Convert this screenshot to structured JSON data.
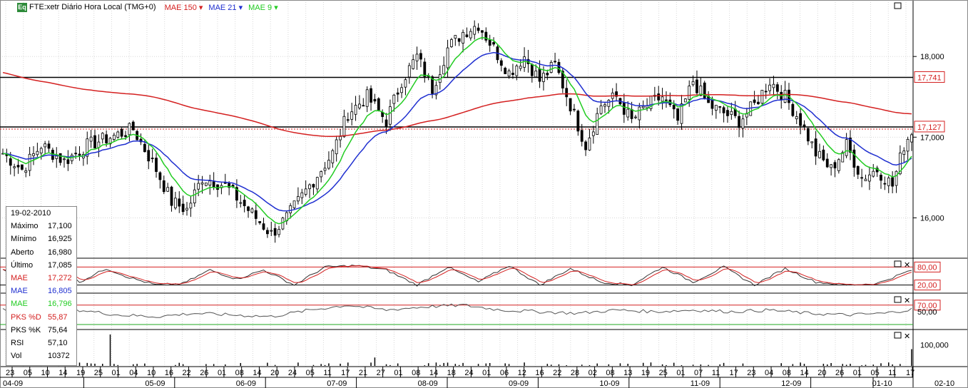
{
  "header": {
    "badge": "Eq",
    "symbol": "FTE:xetr Diário Hora Local (TMG+0)",
    "indicators": [
      {
        "label": "MAE 150",
        "color": "#d42020"
      },
      {
        "label": "MAE 21",
        "color": "#1f2fd0"
      },
      {
        "label": "MAE 9",
        "color": "#22cc22"
      }
    ]
  },
  "infobox": {
    "date": "19-02-2010",
    "rows": [
      {
        "k": "Máximo",
        "v": "17,100",
        "color": "#000000"
      },
      {
        "k": "Mínimo",
        "v": "16,925",
        "color": "#000000"
      },
      {
        "k": "Aberto",
        "v": "16,980",
        "color": "#000000"
      },
      {
        "k": "Último",
        "v": "17,085",
        "color": "#000000"
      },
      {
        "k": "MAE",
        "v": "17,272",
        "color": "#d42020"
      },
      {
        "k": "MAE",
        "v": "16,805",
        "color": "#1f2fd0"
      },
      {
        "k": "MAE",
        "v": "16,796",
        "color": "#22cc22"
      },
      {
        "k": "PKS %D",
        "v": "55,87",
        "color": "#d42020"
      },
      {
        "k": "PKS %K",
        "v": "75,64",
        "color": "#000000"
      },
      {
        "k": "RSI",
        "v": "57,10",
        "color": "#000000"
      },
      {
        "k": "Vol",
        "v": "10372",
        "color": "#000000"
      }
    ]
  },
  "chart_data": {
    "type": "line",
    "price_axis": {
      "ylim": [
        15.5,
        18.7
      ],
      "ticks": [
        {
          "v": 16,
          "label": "16,000"
        },
        {
          "v": 17,
          "label": "17,000"
        },
        {
          "v": 18,
          "label": "18,000"
        }
      ]
    },
    "hlines": [
      {
        "v": 17.741,
        "label": "17,741"
      },
      {
        "v": 17.127,
        "label": "17,127"
      }
    ],
    "stoch_axis": {
      "ylim": [
        0,
        100
      ],
      "levels": [
        {
          "v": 80,
          "label": "80,00"
        },
        {
          "v": 20,
          "label": "20,00"
        }
      ]
    },
    "rsi_axis": {
      "ylim": [
        0,
        100
      ],
      "levels": [
        {
          "v": 70,
          "label": "70,00"
        },
        {
          "v": 50,
          "label": "50,00"
        }
      ]
    },
    "vol_axis": {
      "ylim": [
        0,
        160000
      ],
      "ticks": [
        {
          "v": 100000,
          "label": "100,000"
        }
      ]
    },
    "x_day_labels": [
      "23",
      "05",
      "10",
      "14",
      "19",
      "25",
      "01",
      "04",
      "10",
      "16",
      "22",
      "26",
      "01",
      "08",
      "14",
      "20",
      "24",
      "05",
      "11",
      "17",
      "21",
      "27",
      "01",
      "08",
      "14",
      "18",
      "24",
      "01",
      "06",
      "12",
      "16",
      "22",
      "28",
      "02",
      "08",
      "13",
      "19",
      "25",
      "01",
      "07",
      "11",
      "17",
      "23",
      "04",
      "08",
      "14",
      "20",
      "26",
      "01",
      "05",
      "11",
      "17"
    ],
    "x_month_labels": [
      "04-09",
      "05-09",
      "06-09",
      "07-09",
      "08-09",
      "09-09",
      "10-09",
      "11-09",
      "12-09",
      "01-10",
      "02-10"
    ],
    "price_anchors": [
      [
        0,
        16.8
      ],
      [
        5,
        16.6
      ],
      [
        10,
        16.9
      ],
      [
        16,
        16.7
      ],
      [
        22,
        16.9
      ],
      [
        28,
        17.0
      ],
      [
        34,
        17.1
      ],
      [
        40,
        16.6
      ],
      [
        44,
        16.2
      ],
      [
        48,
        16.1
      ],
      [
        52,
        16.5
      ],
      [
        58,
        16.4
      ],
      [
        62,
        16.2
      ],
      [
        66,
        16.0
      ],
      [
        70,
        15.8
      ],
      [
        74,
        16.0
      ],
      [
        80,
        16.4
      ],
      [
        86,
        16.8
      ],
      [
        90,
        17.3
      ],
      [
        95,
        17.5
      ],
      [
        100,
        17.2
      ],
      [
        104,
        17.7
      ],
      [
        108,
        18.0
      ],
      [
        112,
        17.6
      ],
      [
        116,
        18.1
      ],
      [
        120,
        18.3
      ],
      [
        124,
        18.4
      ],
      [
        128,
        18.1
      ],
      [
        132,
        17.8
      ],
      [
        136,
        18.0
      ],
      [
        140,
        17.7
      ],
      [
        144,
        17.9
      ],
      [
        148,
        17.4
      ],
      [
        152,
        16.9
      ],
      [
        156,
        17.4
      ],
      [
        160,
        17.5
      ],
      [
        164,
        17.2
      ],
      [
        168,
        17.4
      ],
      [
        172,
        17.5
      ],
      [
        176,
        17.2
      ],
      [
        180,
        17.7
      ],
      [
        184,
        17.4
      ],
      [
        188,
        17.3
      ],
      [
        192,
        17.2
      ],
      [
        196,
        17.4
      ],
      [
        200,
        17.7
      ],
      [
        204,
        17.5
      ],
      [
        208,
        17.2
      ],
      [
        212,
        16.8
      ],
      [
        216,
        16.6
      ],
      [
        220,
        16.9
      ],
      [
        224,
        16.5
      ],
      [
        228,
        16.6
      ],
      [
        232,
        16.4
      ],
      [
        235,
        16.9
      ],
      [
        237,
        17.08
      ]
    ],
    "stoch_anchors": [
      [
        0,
        70
      ],
      [
        7,
        40
      ],
      [
        14,
        80
      ],
      [
        20,
        30
      ],
      [
        27,
        75
      ],
      [
        33,
        45
      ],
      [
        40,
        20
      ],
      [
        47,
        25
      ],
      [
        54,
        70
      ],
      [
        61,
        40
      ],
      [
        68,
        70
      ],
      [
        76,
        20
      ],
      [
        84,
        80
      ],
      [
        92,
        85
      ],
      [
        100,
        70
      ],
      [
        108,
        20
      ],
      [
        116,
        80
      ],
      [
        124,
        30
      ],
      [
        132,
        85
      ],
      [
        140,
        20
      ],
      [
        148,
        75
      ],
      [
        156,
        30
      ],
      [
        164,
        20
      ],
      [
        172,
        80
      ],
      [
        180,
        30
      ],
      [
        188,
        80
      ],
      [
        196,
        20
      ],
      [
        204,
        75
      ],
      [
        212,
        30
      ],
      [
        220,
        20
      ],
      [
        228,
        25
      ],
      [
        237,
        70
      ]
    ],
    "rsi_anchors": [
      [
        0,
        55
      ],
      [
        10,
        45
      ],
      [
        20,
        55
      ],
      [
        30,
        40
      ],
      [
        40,
        35
      ],
      [
        50,
        45
      ],
      [
        60,
        40
      ],
      [
        70,
        35
      ],
      [
        80,
        55
      ],
      [
        90,
        70
      ],
      [
        100,
        55
      ],
      [
        110,
        65
      ],
      [
        120,
        70
      ],
      [
        130,
        55
      ],
      [
        140,
        50
      ],
      [
        150,
        45
      ],
      [
        160,
        55
      ],
      [
        170,
        50
      ],
      [
        180,
        55
      ],
      [
        190,
        50
      ],
      [
        200,
        55
      ],
      [
        210,
        45
      ],
      [
        220,
        40
      ],
      [
        230,
        45
      ],
      [
        237,
        57
      ]
    ],
    "volume_spikes": [
      {
        "i": 28,
        "v": 150000
      },
      {
        "i": 97,
        "v": 40000
      },
      {
        "i": 237,
        "v": 80000
      }
    ]
  }
}
